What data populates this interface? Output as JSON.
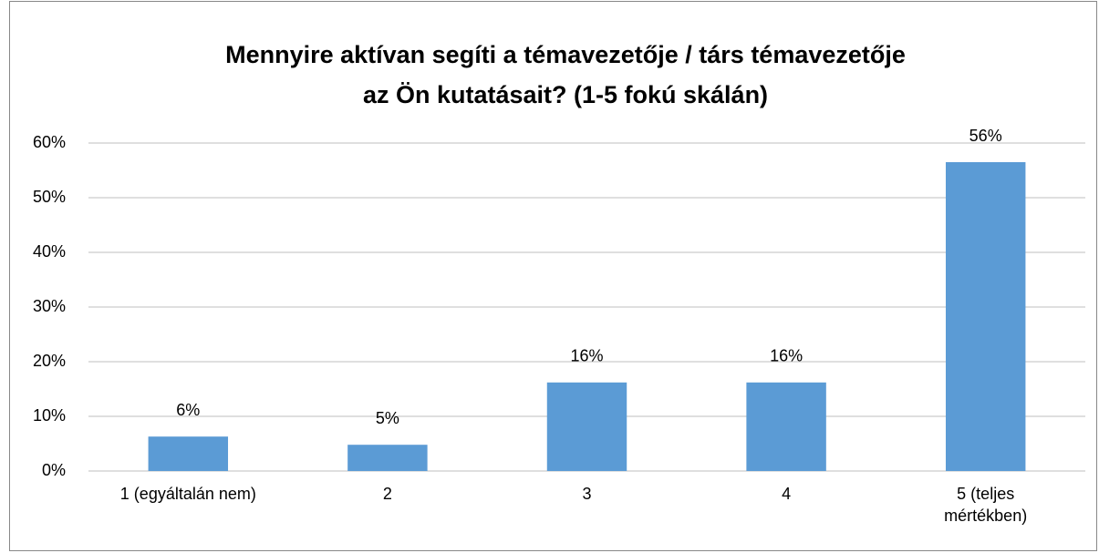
{
  "chart_data": {
    "type": "bar",
    "title": "Mennyire aktívan segíti a témavezetője / társ témavezetője\naz Ön kutatásait? (1-5 fokú skálán)",
    "categories": [
      "1 (egyáltalán nem)",
      "2",
      "3",
      "4",
      "5 (teljes mértékben)"
    ],
    "values": [
      6.3,
      4.8,
      16.2,
      16.2,
      56.5
    ],
    "value_labels": [
      "6%",
      "5%",
      "16%",
      "16%",
      "56%"
    ],
    "color": "#5b9bd5",
    "ylim": [
      0,
      60
    ],
    "yticks": [
      {
        "value": 0,
        "label": "0%"
      },
      {
        "value": 10,
        "label": "10%"
      },
      {
        "value": 20,
        "label": "20%"
      },
      {
        "value": 30,
        "label": "30%"
      },
      {
        "value": 40,
        "label": "40%"
      },
      {
        "value": 50,
        "label": "50%"
      },
      {
        "value": 60,
        "label": "60%"
      }
    ],
    "grid": true
  }
}
